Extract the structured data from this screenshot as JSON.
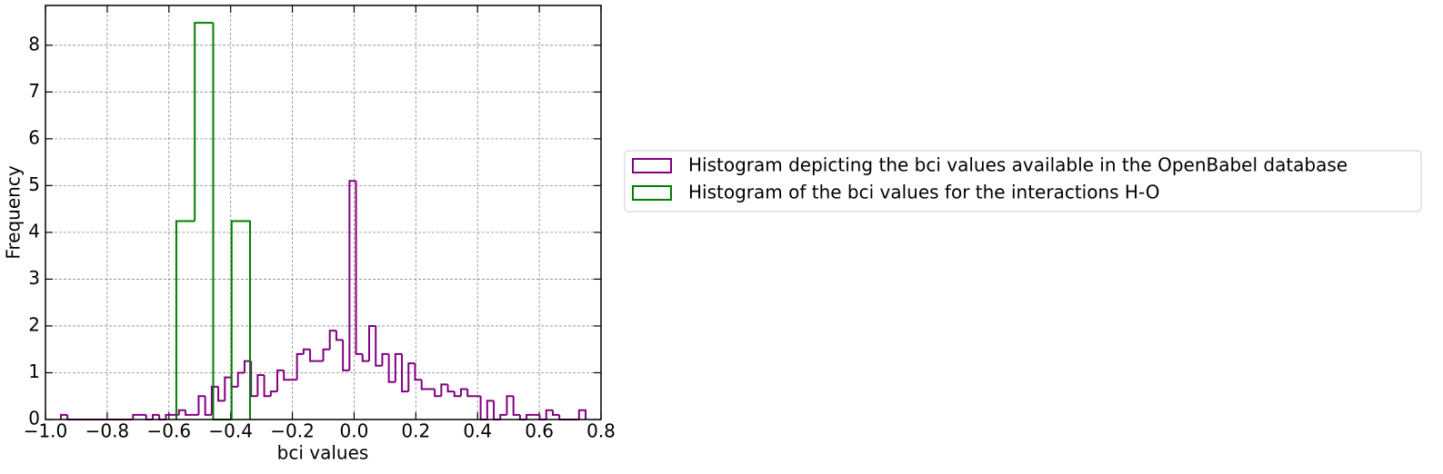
{
  "chart_data": {
    "type": "histogram",
    "xlabel": "bci values",
    "ylabel": "Frequency",
    "xlim": [
      -1.0,
      0.8
    ],
    "ylim": [
      0,
      8.85
    ],
    "xticks": [
      {
        "value": -1.0,
        "label": "−1.0"
      },
      {
        "value": -0.8,
        "label": "−0.8"
      },
      {
        "value": -0.6,
        "label": "−0.6"
      },
      {
        "value": -0.4,
        "label": "−0.4"
      },
      {
        "value": -0.2,
        "label": "−0.2"
      },
      {
        "value": 0.0,
        "label": "0.0"
      },
      {
        "value": 0.2,
        "label": "0.2"
      },
      {
        "value": 0.4,
        "label": "0.4"
      },
      {
        "value": 0.6,
        "label": "0.6"
      },
      {
        "value": 0.8,
        "label": "0.8"
      }
    ],
    "yticks": [
      0,
      1,
      2,
      3,
      4,
      5,
      6,
      7,
      8
    ],
    "grid": true,
    "legend": "right",
    "series": [
      {
        "name": "Histogram depicting the bci values available in the OpenBabel database",
        "color": "#800080",
        "bins": [
          -0.95,
          -0.92875,
          -0.9075,
          -0.88625,
          -0.865,
          -0.84375,
          -0.8225,
          -0.80125,
          -0.78,
          -0.75875,
          -0.7375,
          -0.71625,
          -0.695,
          -0.67375,
          -0.6525,
          -0.63125,
          -0.61,
          -0.58875,
          -0.5675,
          -0.54625,
          -0.525,
          -0.50375,
          -0.4825,
          -0.46125,
          -0.44,
          -0.41875,
          -0.3975,
          -0.37625,
          -0.355,
          -0.33375,
          -0.3125,
          -0.29125,
          -0.27,
          -0.24875,
          -0.2275,
          -0.20625,
          -0.185,
          -0.16375,
          -0.1425,
          -0.12125,
          -0.1,
          -0.07875,
          -0.0575,
          -0.03625,
          -0.015,
          0.00625,
          0.0275,
          0.04875,
          0.07,
          0.09125,
          0.1125,
          0.13375,
          0.155,
          0.17625,
          0.1975,
          0.21875,
          0.24,
          0.26125,
          0.2825,
          0.30375,
          0.325,
          0.34625,
          0.3675,
          0.38875,
          0.41,
          0.43125,
          0.4525,
          0.47375,
          0.495,
          0.51625,
          0.5375,
          0.55875,
          0.58,
          0.60125,
          0.6225,
          0.64375,
          0.665,
          0.68625,
          0.7075,
          0.72875,
          0.75
        ],
        "values": [
          0.1,
          0,
          0,
          0,
          0,
          0,
          0,
          0,
          0,
          0,
          0,
          0.1,
          0.1,
          0,
          0.1,
          0,
          0.1,
          0.1,
          0.2,
          0.1,
          0.1,
          0.5,
          0.1,
          0.7,
          0.4,
          0.9,
          0.7,
          1.0,
          1.25,
          0.5,
          0.95,
          0.5,
          0.6,
          1.05,
          0.85,
          0.85,
          1.4,
          1.5,
          1.25,
          1.25,
          1.5,
          1.9,
          1.7,
          1.05,
          5.1,
          1.4,
          1.25,
          2.0,
          1.15,
          1.4,
          0.8,
          1.4,
          0.6,
          1.2,
          0.85,
          0.65,
          0.65,
          0.5,
          0.75,
          0.6,
          0.5,
          0.65,
          0.5,
          0.5,
          0,
          0.4,
          0,
          0.1,
          0.5,
          0.1,
          0,
          0.1,
          0.1,
          0,
          0.2,
          0.1,
          0,
          0,
          0,
          0.2
        ]
      },
      {
        "name": "Histogram of the bci values for the interactions H-O",
        "color": "#007f00",
        "bins": [
          -0.576,
          -0.5163,
          -0.4566,
          -0.3969,
          -0.3372
        ],
        "values": [
          4.24,
          8.48,
          0,
          4.24
        ]
      }
    ]
  }
}
